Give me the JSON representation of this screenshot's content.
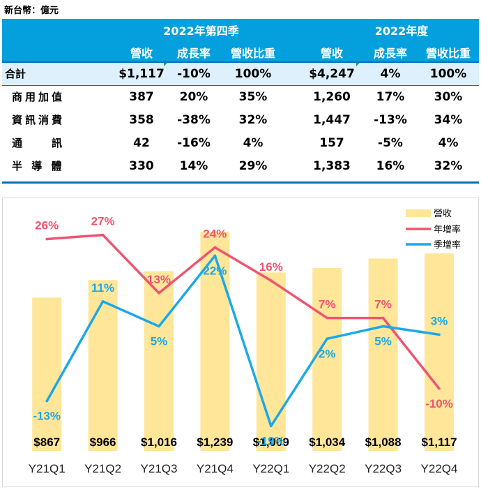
{
  "unit_label": "新台幣：億元",
  "table": {
    "group_headers": [
      "2022年第四季",
      "2022年度"
    ],
    "col_headers": [
      "營收",
      "成長率",
      "營收比重",
      "營收",
      "成長率",
      "營收比重"
    ],
    "rows": [
      {
        "label": "合計",
        "cells": [
          "$1,117",
          "-10%",
          "100%",
          "$4,247",
          "4%",
          "100%"
        ]
      },
      {
        "label": "商用加值",
        "cells": [
          "387",
          "20%",
          "35%",
          "1,260",
          "17%",
          "30%"
        ]
      },
      {
        "label": "資訊消費",
        "cells": [
          "358",
          "-38%",
          "32%",
          "1,447",
          "-13%",
          "34%"
        ]
      },
      {
        "label": "通　　訊",
        "cells": [
          "42",
          "-16%",
          "4%",
          "157",
          "-5%",
          "4%"
        ]
      },
      {
        "label": "半 導 體",
        "cells": [
          "330",
          "14%",
          "29%",
          "1,383",
          "16%",
          "32%"
        ]
      }
    ]
  },
  "chart_data": {
    "type": "bar",
    "categories": [
      "Y21Q1",
      "Y21Q2",
      "Y21Q3",
      "Y21Q4",
      "Y22Q1",
      "Y22Q2",
      "Y22Q3",
      "Y22Q4"
    ],
    "bar_series": {
      "name": "營收",
      "values": [
        867,
        966,
        1016,
        1239,
        1009,
        1034,
        1088,
        1117
      ],
      "labels": [
        "$867",
        "$966",
        "$1,016",
        "$1,239",
        "$1,009",
        "$1,034",
        "$1,088",
        "$1,117"
      ],
      "color": "#FFE699"
    },
    "line_series": [
      {
        "name": "年增率",
        "values": [
          26,
          27,
          13,
          24,
          16,
          7,
          7,
          -10
        ],
        "labels": [
          "26%",
          "27%",
          "13%",
          "24%",
          "16%",
          "7%",
          "7%",
          "-10%"
        ],
        "color": "#EE5571"
      },
      {
        "name": "季增率",
        "values": [
          -13,
          11,
          5,
          22,
          -19,
          2,
          5,
          3
        ],
        "labels": [
          "-13%",
          "11%",
          "5%",
          "22%",
          "-19%",
          "2%",
          "5%",
          "3%"
        ],
        "color": "#1CA8E8"
      }
    ],
    "bar_ylim": [
      0,
      1350
    ],
    "line_ylim": [
      -25,
      35
    ],
    "legend_position": "top-right",
    "grid": false
  }
}
